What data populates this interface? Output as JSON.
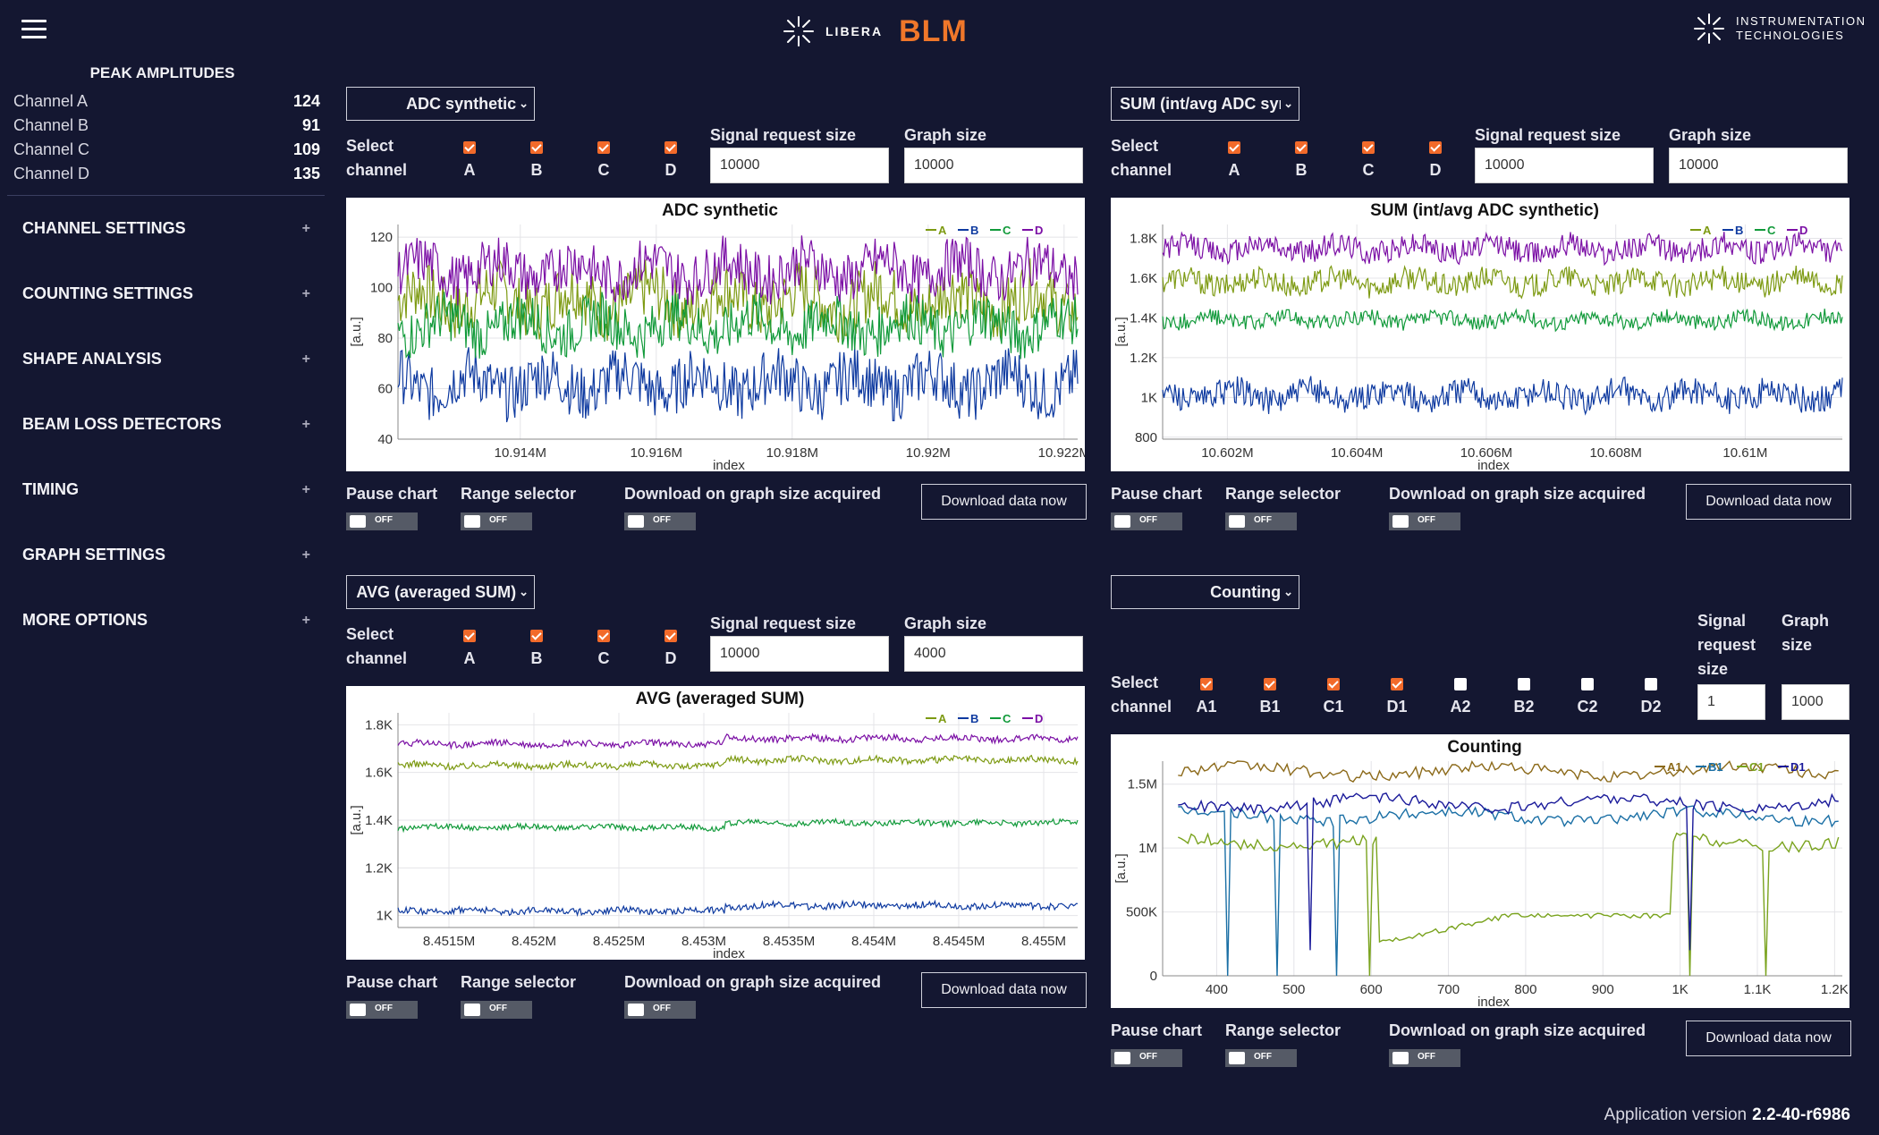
{
  "header": {
    "brand_small": "LIBERA",
    "brand": "BLM",
    "company_line1": "INSTRUMENTATION",
    "company_line2": "TECHNOLOGIES"
  },
  "sidebar": {
    "peak_title": "PEAK AMPLITUDES",
    "peaks": [
      {
        "label": "Channel A",
        "value": "124"
      },
      {
        "label": "Channel B",
        "value": "91"
      },
      {
        "label": "Channel C",
        "value": "109"
      },
      {
        "label": "Channel D",
        "value": "135"
      }
    ],
    "sections": [
      "CHANNEL SETTINGS",
      "COUNTING SETTINGS",
      "SHAPE ANALYSIS",
      "BEAM LOSS DETECTORS",
      "TIMING",
      "GRAPH SETTINGS",
      "MORE OPTIONS"
    ]
  },
  "common": {
    "select_l1": "Select",
    "select_l2": "channel",
    "signal_size": "Signal request size",
    "graph_size": "Graph size",
    "signal_l1": "Signal",
    "signal_l2": "request",
    "signal_l3": "size",
    "graph_l1": "Graph",
    "graph_l2": "size",
    "pause": "Pause chart",
    "range": "Range selector",
    "download_on": "Download on graph size acquired",
    "download_now": "Download data now",
    "off": "OFF",
    "yunit": "[a.u.]",
    "xlabel": "index"
  },
  "panels": [
    {
      "select": "ADC synthetic",
      "channels": [
        "A",
        "B",
        "C",
        "D"
      ],
      "signal": "10000",
      "graph": "10000"
    },
    {
      "select": "SUM (int/avg ADC synthetic)",
      "channels": [
        "A",
        "B",
        "C",
        "D"
      ],
      "signal": "10000",
      "graph": "10000"
    },
    {
      "select": "AVG (averaged SUM)",
      "channels": [
        "A",
        "B",
        "C",
        "D"
      ],
      "signal": "10000",
      "graph": "4000"
    },
    {
      "select": "Counting",
      "channels": [
        "A1",
        "B1",
        "C1",
        "D1",
        "A2",
        "B2",
        "C2",
        "D2"
      ],
      "checked": [
        true,
        true,
        true,
        true,
        false,
        false,
        false,
        false
      ],
      "signal": "1",
      "graph": "1000"
    }
  ],
  "colors": {
    "A": "#7d9a12",
    "B": "#0e3aa0",
    "C": "#119a3a",
    "D": "#7b0fa5",
    "accent": "#f0772a",
    "bg": "#141731"
  },
  "chart_data": [
    {
      "type": "line",
      "title": "ADC synthetic",
      "ylabel": "[a.u.]",
      "xlabel": "index",
      "yticks": [
        "40",
        "60",
        "80",
        "100",
        "120"
      ],
      "xticks": [
        "10.914M",
        "10.916M",
        "10.918M",
        "10.92M",
        "10.922M"
      ],
      "ylim": [
        40,
        125
      ],
      "xlim": [
        10.9122,
        10.9222
      ],
      "legend": "top-right",
      "series": [
        {
          "name": "A",
          "color": "#7d9a12",
          "mean": 95,
          "spread": 12
        },
        {
          "name": "B",
          "color": "#0e3aa0",
          "mean": 62,
          "spread": 11
        },
        {
          "name": "C",
          "color": "#119a3a",
          "mean": 85,
          "spread": 10
        },
        {
          "name": "D",
          "color": "#7b0fa5",
          "mean": 107,
          "spread": 10
        }
      ]
    },
    {
      "type": "line",
      "title": "SUM (int/avg ADC synthetic)",
      "ylabel": "[a.u.]",
      "xlabel": "index",
      "yticks": [
        "800",
        "1K",
        "1.2K",
        "1.4K",
        "1.6K",
        "1.8K"
      ],
      "xticks": [
        "10.602M",
        "10.604M",
        "10.606M",
        "10.608M",
        "10.61M"
      ],
      "ylim": [
        790,
        1870
      ],
      "xlim": [
        10.601,
        10.6115
      ],
      "legend": "top-right",
      "series": [
        {
          "name": "A",
          "color": "#7d9a12",
          "mean": 1580,
          "spread": 60
        },
        {
          "name": "B",
          "color": "#0e3aa0",
          "mean": 1010,
          "spread": 70
        },
        {
          "name": "C",
          "color": "#119a3a",
          "mean": 1390,
          "spread": 40
        },
        {
          "name": "D",
          "color": "#7b0fa5",
          "mean": 1750,
          "spread": 60
        }
      ]
    },
    {
      "type": "line",
      "title": "AVG (averaged SUM)",
      "ylabel": "[a.u.]",
      "xlabel": "index",
      "yticks": [
        "1K",
        "1.2K",
        "1.4K",
        "1.6K",
        "1.8K"
      ],
      "xticks": [
        "8.4515M",
        "8.452M",
        "8.4525M",
        "8.453M",
        "8.4535M",
        "8.454M",
        "8.4545M",
        "8.455M"
      ],
      "ylim": [
        950,
        1850
      ],
      "xlim": [
        8.4512,
        8.4552
      ],
      "legend": "top-right",
      "series": [
        {
          "name": "A",
          "color": "#7d9a12",
          "mean": 1630,
          "spread": 14
        },
        {
          "name": "B",
          "color": "#0e3aa0",
          "mean": 1020,
          "spread": 14
        },
        {
          "name": "C",
          "color": "#119a3a",
          "mean": 1370,
          "spread": 12
        },
        {
          "name": "D",
          "color": "#7b0fa5",
          "mean": 1720,
          "spread": 14
        }
      ]
    },
    {
      "type": "line",
      "title": "Counting",
      "ylabel": "[a.u.]",
      "xlabel": "index",
      "yticks": [
        "0",
        "500K",
        "1M",
        "1.5M"
      ],
      "xticks": [
        "400",
        "500",
        "600",
        "700",
        "800",
        "900",
        "1K",
        "1.1K",
        "1.2K"
      ],
      "ylim": [
        0,
        1680000
      ],
      "xlim": [
        330,
        1210
      ],
      "legend": "top-right",
      "series": [
        {
          "name": "A1",
          "color": "#8c6a1a",
          "level": 1600000
        },
        {
          "name": "B1",
          "color": "#1a6fa5",
          "level": 1250000
        },
        {
          "name": "C1",
          "color": "#7aa31e",
          "level": 1050000
        },
        {
          "name": "D1",
          "color": "#1a1a9a",
          "level": 1350000
        }
      ]
    }
  ],
  "footer": {
    "version_label": "Application version",
    "version": "2.2-40-r6986"
  }
}
